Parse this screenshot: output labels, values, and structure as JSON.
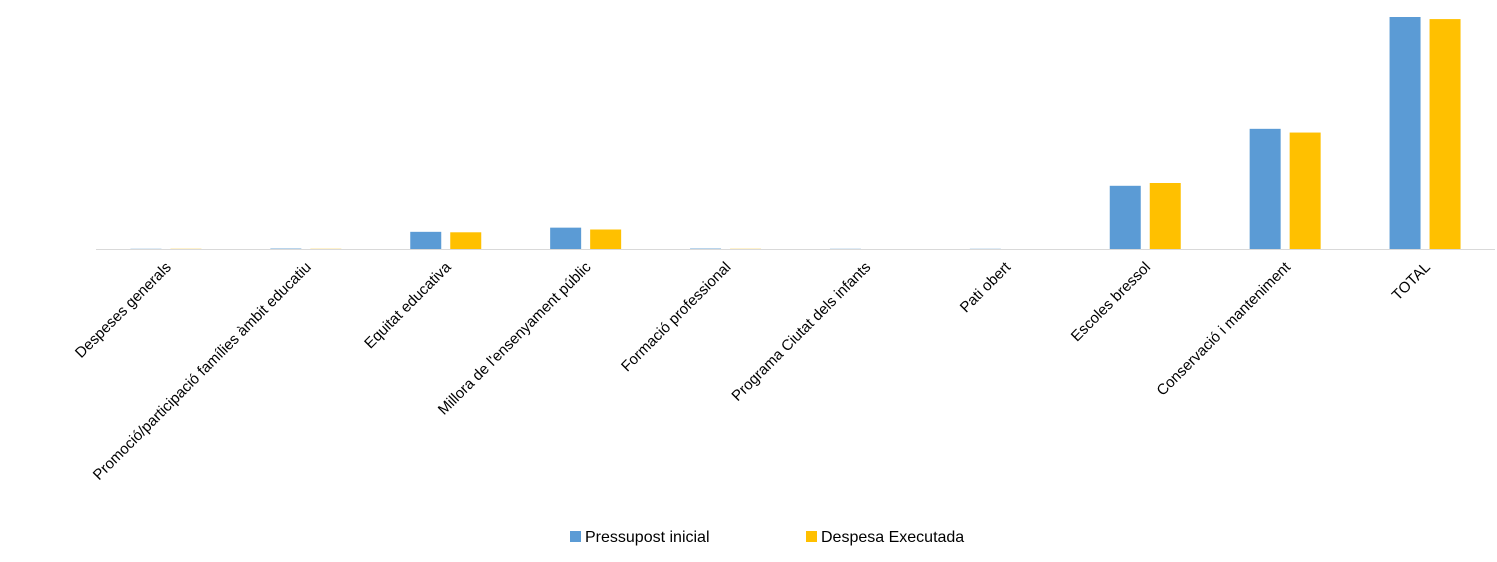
{
  "chart_data": {
    "type": "bar",
    "title": "",
    "xlabel": "",
    "ylabel": "",
    "ylim": [
      0,
      100
    ],
    "grid": false,
    "legend_position": "bottom",
    "categories": [
      "Despeses generals",
      "Promoció/participació famílies àmbit educatiu",
      "Equitat educativa",
      "Millora de l'ensenyament públic",
      "Formació professional",
      "Programa Ciutat dels infants",
      "Pati obert",
      "Escoles bressol",
      "Conservació i manteniment",
      "TOTAL"
    ],
    "series": [
      {
        "name": "Pressupost inicial",
        "color": "#5B9BD5",
        "values": [
          0.3,
          0.4,
          7.6,
          9.4,
          0.4,
          0.3,
          0.3,
          27.4,
          51.9,
          100
        ]
      },
      {
        "name": "Despesa Executada",
        "color": "#FFC000",
        "values": [
          0.3,
          0.3,
          7.4,
          8.6,
          0.3,
          0.0,
          0.2,
          28.6,
          50.3,
          99.1
        ]
      }
    ]
  }
}
